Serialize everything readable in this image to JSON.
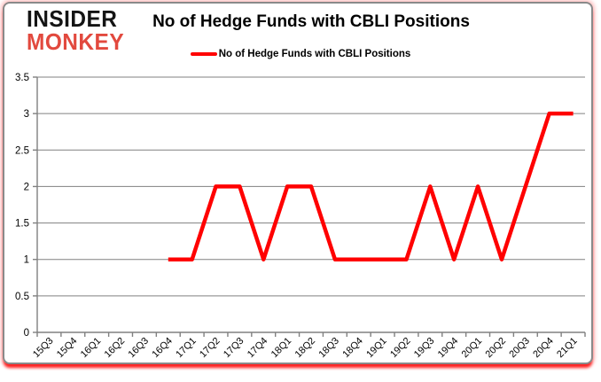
{
  "logo": {
    "line1": "INSIDER",
    "line2": "MONKEY",
    "line1_color": "#141414",
    "line2_color": "#e2493e"
  },
  "header": {
    "title": "No of Hedge Funds with CBLI Positions"
  },
  "legend": {
    "label": "No of Hedge Funds with CBLI Positions",
    "swatch_color": "#ff0000"
  },
  "chart_data": {
    "type": "line",
    "title": "No of Hedge Funds with CBLI Positions",
    "categories": [
      "15Q3",
      "15Q4",
      "16Q1",
      "16Q2",
      "16Q3",
      "16Q4",
      "17Q1",
      "17Q2",
      "17Q3",
      "17Q4",
      "18Q1",
      "18Q2",
      "18Q3",
      "18Q4",
      "19Q1",
      "19Q2",
      "19Q3",
      "19Q4",
      "20Q1",
      "20Q2",
      "20Q3",
      "20Q4",
      "21Q1"
    ],
    "series": [
      {
        "name": "No of Hedge Funds with CBLI Positions",
        "color": "#ff0000",
        "values": [
          null,
          null,
          null,
          null,
          null,
          1,
          1,
          2,
          2,
          1,
          2,
          2,
          1,
          1,
          1,
          1,
          2,
          1,
          2,
          1,
          2,
          3,
          3
        ]
      }
    ],
    "xlabel": "",
    "ylabel": "",
    "ylim": [
      0,
      3.5
    ],
    "ytick_step": 0.5,
    "grid": "horizontal",
    "legend_position": "top",
    "line_width": 4.5,
    "axis_color": "#808080",
    "label_color": "#000000"
  }
}
